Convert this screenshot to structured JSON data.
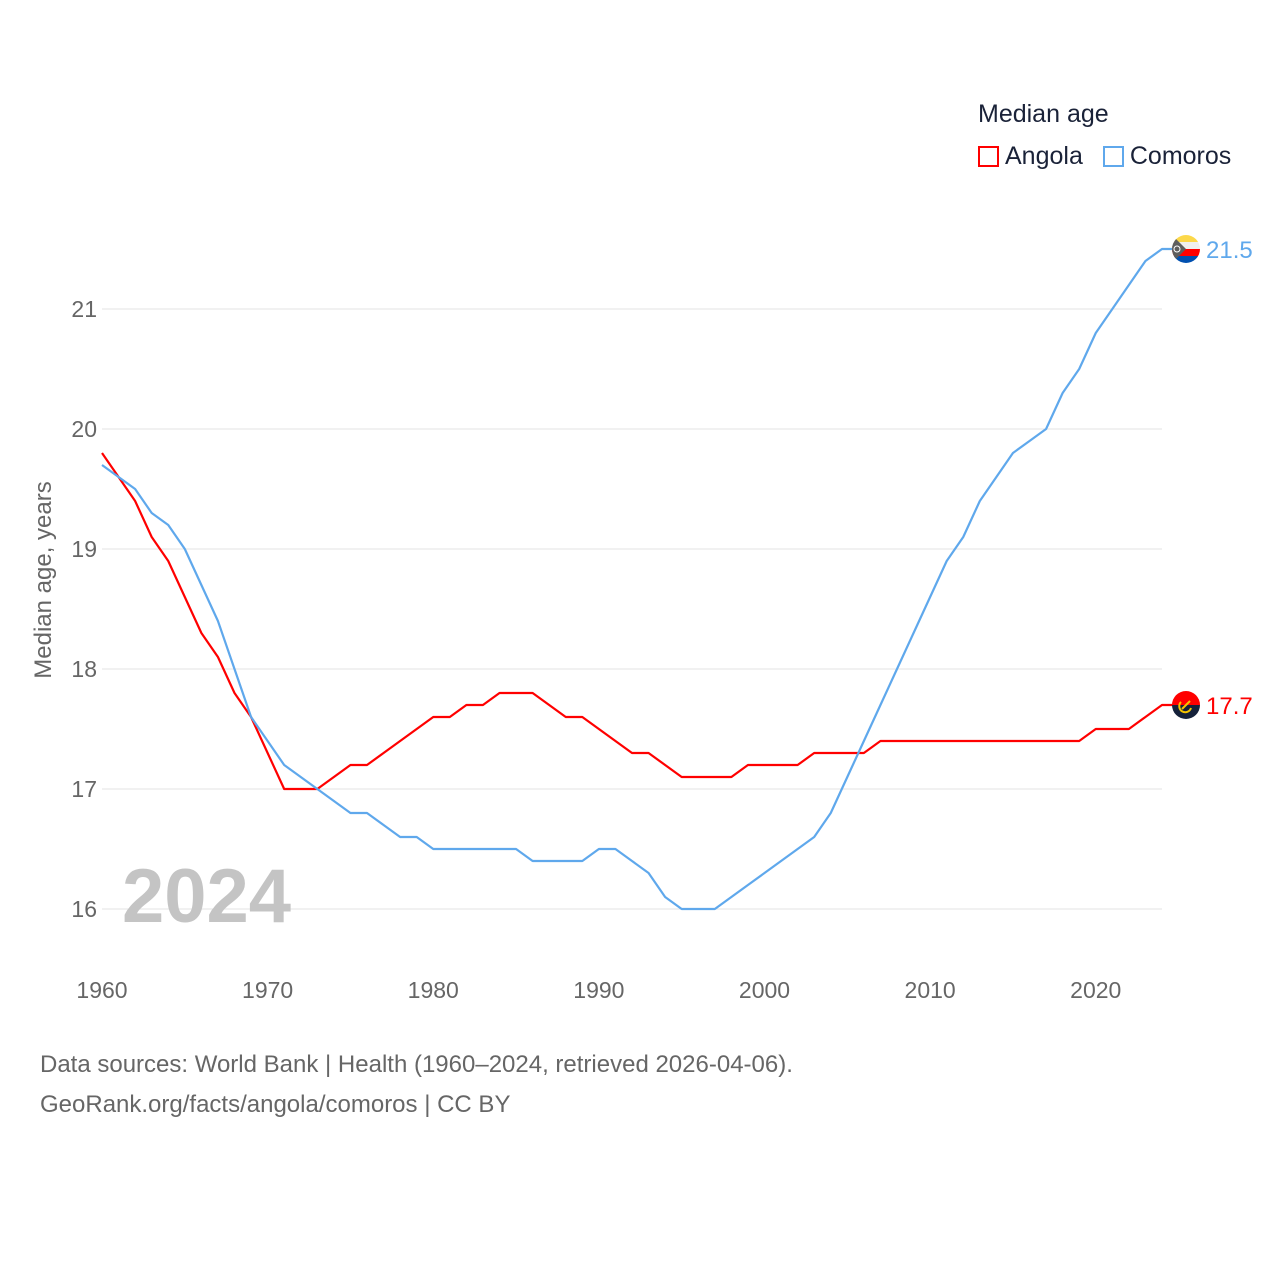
{
  "chart_data": {
    "type": "line",
    "title": "",
    "xlabel": "",
    "ylabel": "Median age, years",
    "xlim": [
      1960,
      2024
    ],
    "ylim": [
      15.6,
      22
    ],
    "x_ticks": [
      1960,
      1970,
      1980,
      1990,
      2000,
      2010,
      2020
    ],
    "y_ticks": [
      16,
      17,
      18,
      19,
      20,
      21
    ],
    "grid": true,
    "watermark_year": "2024",
    "legend": {
      "title": "Median age",
      "placement": "top-right"
    },
    "x": [
      1960,
      1961,
      1962,
      1963,
      1964,
      1965,
      1966,
      1967,
      1968,
      1969,
      1970,
      1971,
      1972,
      1973,
      1974,
      1975,
      1976,
      1977,
      1978,
      1979,
      1980,
      1981,
      1982,
      1983,
      1984,
      1985,
      1986,
      1987,
      1988,
      1989,
      1990,
      1991,
      1992,
      1993,
      1994,
      1995,
      1996,
      1997,
      1998,
      1999,
      2000,
      2001,
      2002,
      2003,
      2004,
      2005,
      2006,
      2007,
      2008,
      2009,
      2010,
      2011,
      2012,
      2013,
      2014,
      2015,
      2016,
      2017,
      2018,
      2019,
      2020,
      2021,
      2022,
      2023,
      2024
    ],
    "series": [
      {
        "name": "Angola",
        "color": "#ff0000",
        "end_label": "17.7",
        "flag": "angola-flag",
        "values": [
          19.8,
          19.6,
          19.4,
          19.1,
          18.9,
          18.6,
          18.3,
          18.1,
          17.8,
          17.6,
          17.3,
          17.0,
          17.0,
          17.0,
          17.1,
          17.2,
          17.2,
          17.3,
          17.4,
          17.5,
          17.6,
          17.6,
          17.7,
          17.7,
          17.8,
          17.8,
          17.8,
          17.7,
          17.6,
          17.6,
          17.5,
          17.4,
          17.3,
          17.3,
          17.2,
          17.1,
          17.1,
          17.1,
          17.1,
          17.2,
          17.2,
          17.2,
          17.2,
          17.3,
          17.3,
          17.3,
          17.3,
          17.4,
          17.4,
          17.4,
          17.4,
          17.4,
          17.4,
          17.4,
          17.4,
          17.4,
          17.4,
          17.4,
          17.4,
          17.4,
          17.5,
          17.5,
          17.5,
          17.6,
          17.7
        ]
      },
      {
        "name": "Comoros",
        "color": "#5fa8ec",
        "end_label": "21.5",
        "flag": "comoros-flag",
        "values": [
          19.7,
          19.6,
          19.5,
          19.3,
          19.2,
          19.0,
          18.7,
          18.4,
          18.0,
          17.6,
          17.4,
          17.2,
          17.1,
          17.0,
          16.9,
          16.8,
          16.8,
          16.7,
          16.6,
          16.6,
          16.5,
          16.5,
          16.5,
          16.5,
          16.5,
          16.5,
          16.4,
          16.4,
          16.4,
          16.4,
          16.5,
          16.5,
          16.4,
          16.3,
          16.1,
          16.0,
          16.0,
          16.0,
          16.1,
          16.2,
          16.3,
          16.4,
          16.5,
          16.6,
          16.8,
          17.1,
          17.4,
          17.7,
          18.0,
          18.3,
          18.6,
          18.9,
          19.1,
          19.4,
          19.6,
          19.8,
          19.9,
          20.0,
          20.3,
          20.5,
          20.8,
          21.0,
          21.2,
          21.4,
          21.5
        ]
      }
    ]
  },
  "footer": {
    "line1": "Data sources: World Bank | Health (1960–2024, retrieved 2026-04-06).",
    "line2": "GeoRank.org/facts/angola/comoros | CC BY"
  }
}
